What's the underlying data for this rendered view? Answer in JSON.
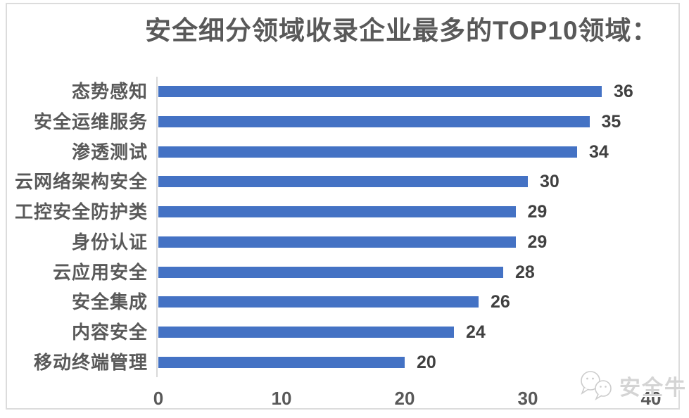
{
  "chart_data": {
    "type": "bar",
    "orientation": "horizontal",
    "title": "安全细分领域收录企业最多的TOP10领域：",
    "categories": [
      "态势感知",
      "安全运维服务",
      "渗透测试",
      "云网络架构安全",
      "工控安全防护类",
      "身份认证",
      "云应用安全",
      "安全集成",
      "内容安全",
      "移动终端管理"
    ],
    "values": [
      36,
      35,
      34,
      30,
      29,
      29,
      28,
      26,
      24,
      20
    ],
    "xlabel": "",
    "ylabel": "",
    "xlim": [
      0,
      40
    ],
    "x_ticks": [
      "0",
      "10",
      "20",
      "30",
      "40"
    ],
    "x_tick_values": [
      0,
      10,
      20,
      30,
      40
    ],
    "grid": false,
    "legend": false,
    "data_labels": true,
    "bar_color": "#4472C4",
    "axis_line_color": "#D9D9D9",
    "title_color": "#595959",
    "category_label_color": "#595959",
    "value_label_color": "#404040",
    "tick_label_color": "#595959",
    "frame_border_color": "#DCDCDC"
  },
  "watermark": {
    "text": "安全牛",
    "icon": "chat-bubbles-icon"
  }
}
